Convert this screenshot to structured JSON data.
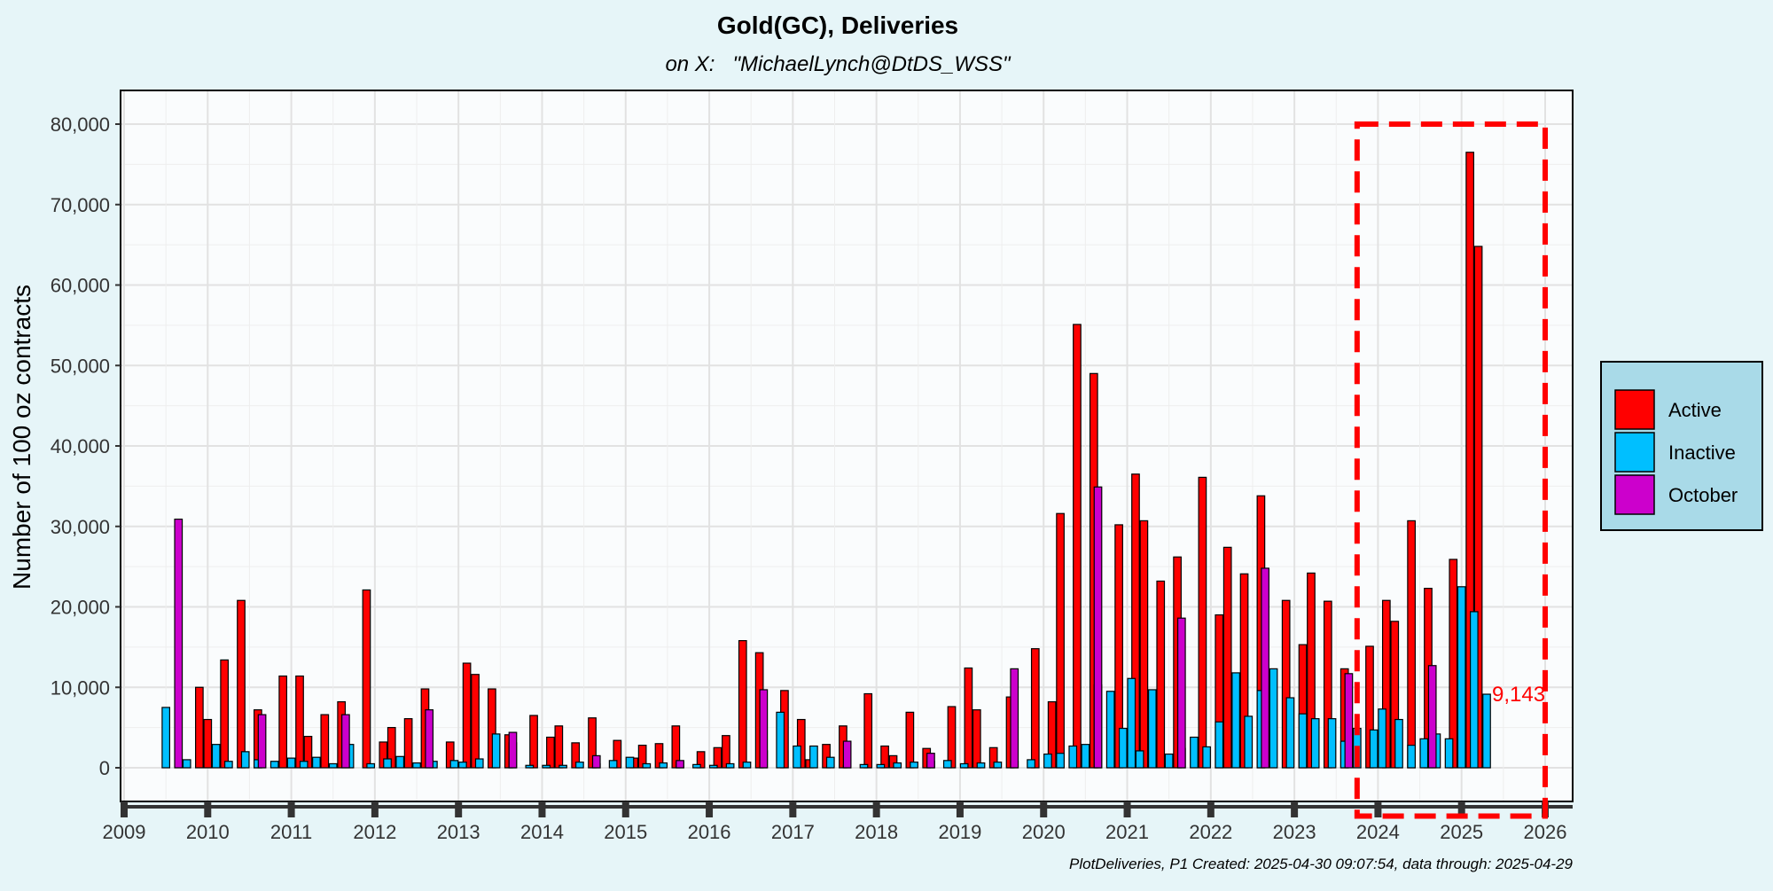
{
  "chart_data": {
    "type": "bar",
    "title": "Gold(GC), Deliveries",
    "subtitle": "on X:   \"MichaelLynch@DtDS_WSS\"",
    "ylabel": "Number of 100 oz contracts",
    "xlabel": "",
    "ylim": [
      -4000,
      84000
    ],
    "xlim": [
      2008.9,
      2026.1
    ],
    "yticks": [
      0,
      10000,
      20000,
      30000,
      40000,
      50000,
      60000,
      70000,
      80000
    ],
    "ytick_labels": [
      "0",
      "10,000",
      "20,000",
      "30,000",
      "40,000",
      "50,000",
      "60,000",
      "70,000",
      "80,000"
    ],
    "xticks": [
      2009,
      2010,
      2011,
      2012,
      2013,
      2014,
      2015,
      2016,
      2017,
      2018,
      2019,
      2020,
      2021,
      2022,
      2023,
      2024,
      2025,
      2026
    ],
    "xtick_labels": [
      "2009",
      "2010",
      "2011",
      "2012",
      "2013",
      "2014",
      "2015",
      "2016",
      "2017",
      "2018",
      "2019",
      "2020",
      "2021",
      "2022",
      "2023",
      "2024",
      "2025",
      "2026"
    ],
    "grid": true,
    "legend_position": "right",
    "series": [
      {
        "name": "Active",
        "color": "#ff0000",
        "points": [
          [
            2009.9,
            10000
          ],
          [
            2010.0,
            6000
          ],
          [
            2010.2,
            13400
          ],
          [
            2010.4,
            20800
          ],
          [
            2010.6,
            7200
          ],
          [
            2010.9,
            11400
          ],
          [
            2011.1,
            11400
          ],
          [
            2011.2,
            3900
          ],
          [
            2011.4,
            6600
          ],
          [
            2011.6,
            8200
          ],
          [
            2011.9,
            22100
          ],
          [
            2012.1,
            3200
          ],
          [
            2012.2,
            5000
          ],
          [
            2012.4,
            6100
          ],
          [
            2012.6,
            9800
          ],
          [
            2012.9,
            3200
          ],
          [
            2013.1,
            13000
          ],
          [
            2013.2,
            11600
          ],
          [
            2013.4,
            9800
          ],
          [
            2013.6,
            4100
          ],
          [
            2013.9,
            6500
          ],
          [
            2014.1,
            3800
          ],
          [
            2014.2,
            5200
          ],
          [
            2014.4,
            3100
          ],
          [
            2014.6,
            6200
          ],
          [
            2014.9,
            3400
          ],
          [
            2015.1,
            1200
          ],
          [
            2015.2,
            2800
          ],
          [
            2015.4,
            3000
          ],
          [
            2015.6,
            5200
          ],
          [
            2015.9,
            2000
          ],
          [
            2016.1,
            2500
          ],
          [
            2016.2,
            4000
          ],
          [
            2016.4,
            15800
          ],
          [
            2016.6,
            14300
          ],
          [
            2016.9,
            9600
          ],
          [
            2017.1,
            6000
          ],
          [
            2017.2,
            1000
          ],
          [
            2017.4,
            2900
          ],
          [
            2017.6,
            5200
          ],
          [
            2017.9,
            9200
          ],
          [
            2018.1,
            2700
          ],
          [
            2018.2,
            1500
          ],
          [
            2018.4,
            6900
          ],
          [
            2018.6,
            2400
          ],
          [
            2018.9,
            7600
          ],
          [
            2019.1,
            12400
          ],
          [
            2019.2,
            7200
          ],
          [
            2019.4,
            2500
          ],
          [
            2019.6,
            8800
          ],
          [
            2019.9,
            14800
          ],
          [
            2020.1,
            8200
          ],
          [
            2020.2,
            31600
          ],
          [
            2020.4,
            55100
          ],
          [
            2020.6,
            49000
          ],
          [
            2020.9,
            30200
          ],
          [
            2021.1,
            36500
          ],
          [
            2021.2,
            30700
          ],
          [
            2021.4,
            23200
          ],
          [
            2021.6,
            26200
          ],
          [
            2021.9,
            36100
          ],
          [
            2022.1,
            19000
          ],
          [
            2022.2,
            27400
          ],
          [
            2022.4,
            24100
          ],
          [
            2022.6,
            33800
          ],
          [
            2022.9,
            20800
          ],
          [
            2023.1,
            15300
          ],
          [
            2023.2,
            24200
          ],
          [
            2023.4,
            20700
          ],
          [
            2023.6,
            12300
          ],
          [
            2023.9,
            15100
          ],
          [
            2024.1,
            20800
          ],
          [
            2024.2,
            18200
          ],
          [
            2024.4,
            30700
          ],
          [
            2024.6,
            22300
          ],
          [
            2024.9,
            25900
          ],
          [
            2025.1,
            76500
          ],
          [
            2025.2,
            64800
          ]
        ]
      },
      {
        "name": "Inactive",
        "color": "#00bfff",
        "points": [
          [
            2009.5,
            7500
          ],
          [
            2009.75,
            1000
          ],
          [
            2010.1,
            2900
          ],
          [
            2010.25,
            800
          ],
          [
            2010.45,
            2000
          ],
          [
            2010.6,
            1000
          ],
          [
            2010.8,
            800
          ],
          [
            2011.0,
            1200
          ],
          [
            2011.15,
            800
          ],
          [
            2011.3,
            1300
          ],
          [
            2011.5,
            500
          ],
          [
            2011.7,
            2900
          ],
          [
            2011.95,
            500
          ],
          [
            2012.15,
            1100
          ],
          [
            2012.3,
            1400
          ],
          [
            2012.5,
            600
          ],
          [
            2012.7,
            800
          ],
          [
            2012.95,
            900
          ],
          [
            2013.05,
            700
          ],
          [
            2013.25,
            1100
          ],
          [
            2013.45,
            4200
          ],
          [
            2013.65,
            3100
          ],
          [
            2013.85,
            300
          ],
          [
            2014.05,
            300
          ],
          [
            2014.25,
            300
          ],
          [
            2014.45,
            700
          ],
          [
            2014.65,
            500
          ],
          [
            2014.85,
            900
          ],
          [
            2015.05,
            1300
          ],
          [
            2015.25,
            500
          ],
          [
            2015.45,
            600
          ],
          [
            2015.65,
            700
          ],
          [
            2015.85,
            400
          ],
          [
            2016.05,
            300
          ],
          [
            2016.25,
            500
          ],
          [
            2016.45,
            700
          ],
          [
            2016.65,
            2100
          ],
          [
            2016.85,
            6900
          ],
          [
            2017.05,
            2700
          ],
          [
            2017.25,
            2700
          ],
          [
            2017.45,
            1300
          ],
          [
            2017.65,
            300
          ],
          [
            2017.85,
            400
          ],
          [
            2018.05,
            400
          ],
          [
            2018.25,
            600
          ],
          [
            2018.45,
            700
          ],
          [
            2018.65,
            800
          ],
          [
            2018.85,
            900
          ],
          [
            2019.05,
            500
          ],
          [
            2019.25,
            600
          ],
          [
            2019.45,
            700
          ],
          [
            2019.65,
            800
          ],
          [
            2019.85,
            1000
          ],
          [
            2020.05,
            1700
          ],
          [
            2020.2,
            1800
          ],
          [
            2020.35,
            2700
          ],
          [
            2020.5,
            2900
          ],
          [
            2020.65,
            10300
          ],
          [
            2020.8,
            9500
          ],
          [
            2020.95,
            4900
          ],
          [
            2021.05,
            11100
          ],
          [
            2021.15,
            2100
          ],
          [
            2021.3,
            9700
          ],
          [
            2021.5,
            1700
          ],
          [
            2021.65,
            2400
          ],
          [
            2021.8,
            3800
          ],
          [
            2021.95,
            2600
          ],
          [
            2022.1,
            5700
          ],
          [
            2022.3,
            11800
          ],
          [
            2022.45,
            6400
          ],
          [
            2022.6,
            9600
          ],
          [
            2022.75,
            12300
          ],
          [
            2022.95,
            8700
          ],
          [
            2023.1,
            6700
          ],
          [
            2023.25,
            6100
          ],
          [
            2023.45,
            6100
          ],
          [
            2023.6,
            3300
          ],
          [
            2023.75,
            4900
          ],
          [
            2023.95,
            4700
          ],
          [
            2024.05,
            7300
          ],
          [
            2024.25,
            6000
          ],
          [
            2024.4,
            2800
          ],
          [
            2024.55,
            3600
          ],
          [
            2024.7,
            4200
          ],
          [
            2024.85,
            3600
          ],
          [
            2025.0,
            22500
          ],
          [
            2025.15,
            19400
          ],
          [
            2025.3,
            9143
          ]
        ]
      },
      {
        "name": "October",
        "color": "#cc00cc",
        "points": [
          [
            2009.65,
            30900
          ],
          [
            2010.65,
            6600
          ],
          [
            2011.65,
            6600
          ],
          [
            2012.65,
            7200
          ],
          [
            2013.65,
            4400
          ],
          [
            2014.65,
            1500
          ],
          [
            2015.65,
            900
          ],
          [
            2016.65,
            9700
          ],
          [
            2017.65,
            3300
          ],
          [
            2018.65,
            1800
          ],
          [
            2019.65,
            12300
          ],
          [
            2020.65,
            34900
          ],
          [
            2021.65,
            18600
          ],
          [
            2022.65,
            24800
          ],
          [
            2023.65,
            11700
          ],
          [
            2024.65,
            12700
          ]
        ]
      }
    ],
    "annotations": [
      {
        "text": "9,143",
        "x": 2025.3,
        "y": 9143,
        "color": "#ff0000"
      }
    ],
    "highlight_region": {
      "x_from": 2023.75,
      "x_to": 2026.0,
      "y_from": -6000,
      "y_to": 80000,
      "color": "#ff0000",
      "style": "dashed"
    },
    "caption": "PlotDeliveries, P1 Created: 2025-04-30 09:07:54, data through: 2025-04-29"
  }
}
